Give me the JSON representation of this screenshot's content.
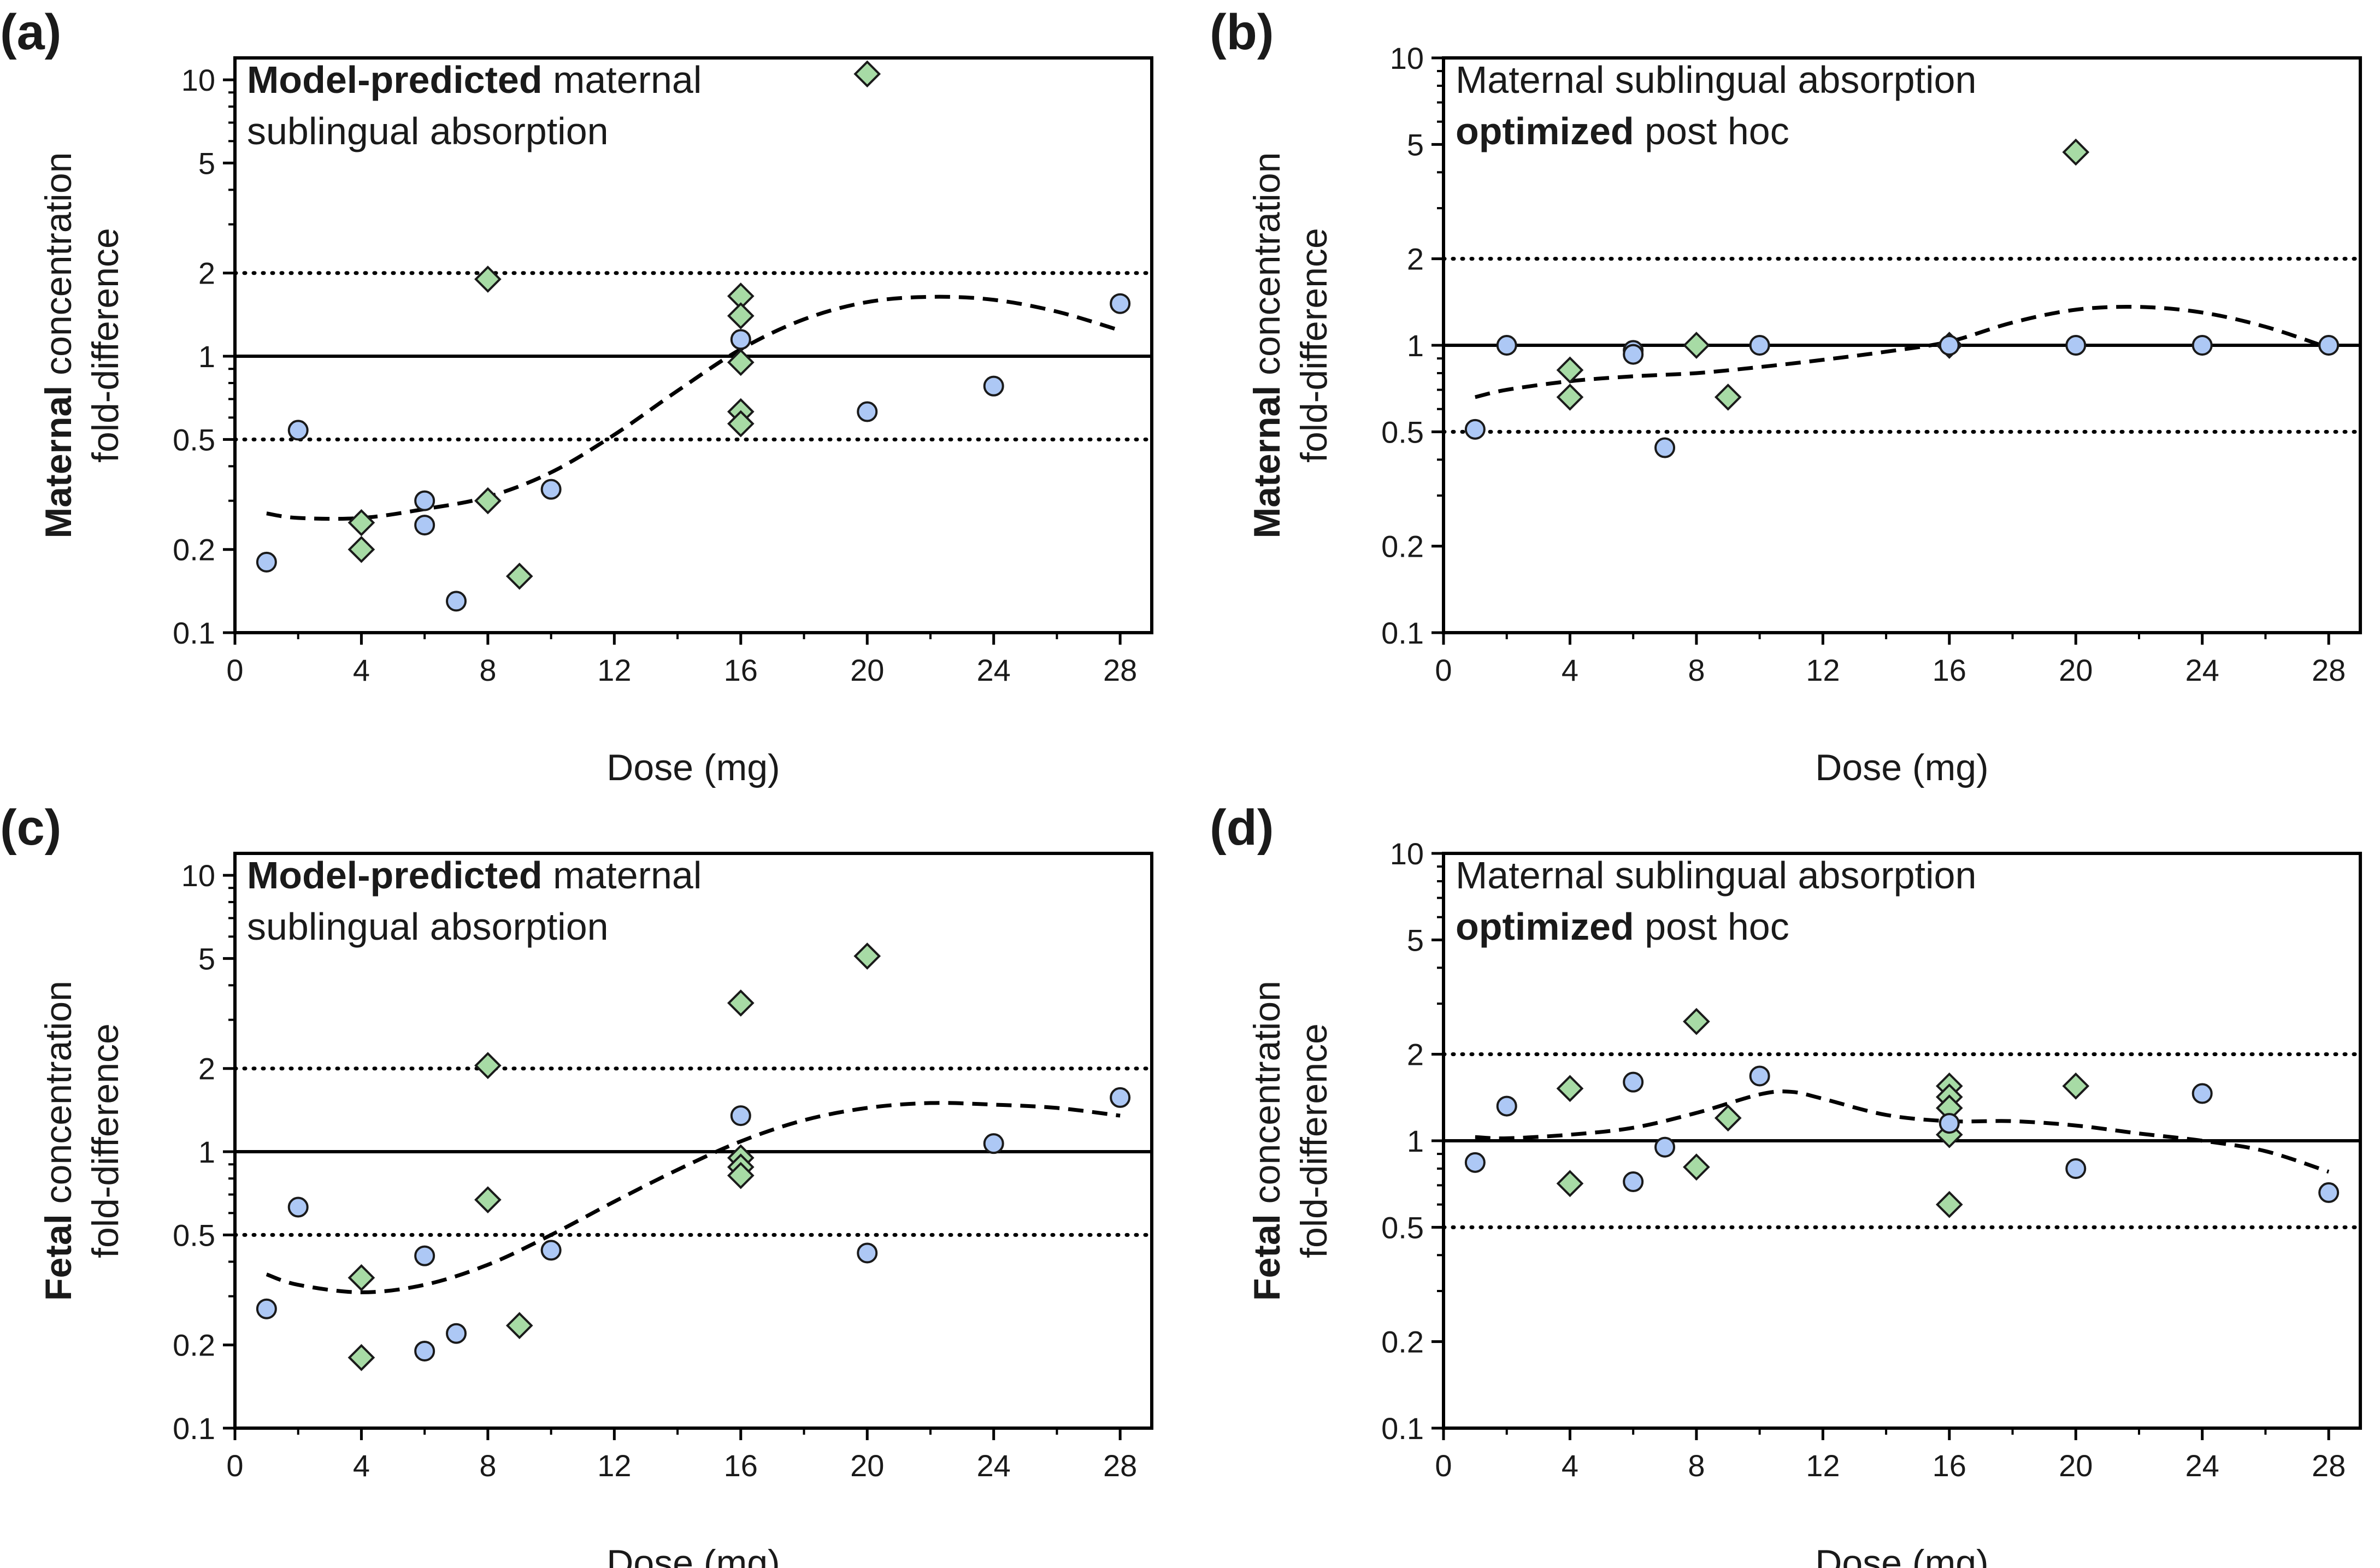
{
  "colors": {
    "circle_fill": "#adc8f5",
    "diamond_fill": "#a7dba5",
    "marker_stroke": "#1a1a1a",
    "line": "#000000"
  },
  "marker_shapes": [
    "circle-marker",
    "diamond-marker"
  ],
  "chart_data": [
    {
      "panel": "(a)",
      "type": "scatter",
      "annotation": {
        "line1_bold": "Model-predicted",
        "line1_rest": " maternal",
        "line2": "sublingual absorption",
        "line2_bold": "",
        "line2_rest": ""
      },
      "xlabel": "Dose (mg)",
      "ylabel_bold": "Maternal",
      "ylabel_rest": " concentration",
      "ylabel_line2": "fold-difference",
      "xlim": [
        0,
        29
      ],
      "ylim": [
        0.1,
        12
      ],
      "yscale": "log",
      "xticks": [
        0,
        4,
        8,
        12,
        16,
        20,
        24,
        28
      ],
      "yticks": [
        0.1,
        0.2,
        0.5,
        1,
        2,
        5,
        10
      ],
      "ytick_labels": [
        "0.1",
        "0.2",
        "0.5",
        "1",
        "2",
        "5",
        "10"
      ],
      "reference_solid": 1,
      "reference_dotted": [
        0.5,
        2
      ],
      "circles": [
        [
          1,
          0.18
        ],
        [
          2,
          0.54
        ],
        [
          6,
          0.3
        ],
        [
          6,
          0.245
        ],
        [
          7,
          0.13
        ],
        [
          10,
          0.33
        ],
        [
          16,
          1.15
        ],
        [
          20,
          0.63
        ],
        [
          24,
          0.78
        ],
        [
          28,
          1.55
        ]
      ],
      "diamonds": [
        [
          4,
          0.25
        ],
        [
          4,
          0.2
        ],
        [
          8,
          1.9
        ],
        [
          8,
          0.3
        ],
        [
          9,
          0.16
        ],
        [
          16,
          1.65
        ],
        [
          16,
          1.4
        ],
        [
          16,
          0.95
        ],
        [
          16,
          0.63
        ],
        [
          16,
          0.57
        ],
        [
          20,
          10.5
        ]
      ],
      "trend": [
        [
          1,
          0.27
        ],
        [
          2,
          0.26
        ],
        [
          4,
          0.26
        ],
        [
          6,
          0.28
        ],
        [
          8,
          0.31
        ],
        [
          10,
          0.38
        ],
        [
          12,
          0.52
        ],
        [
          14,
          0.75
        ],
        [
          16,
          1.06
        ],
        [
          18,
          1.36
        ],
        [
          20,
          1.57
        ],
        [
          22,
          1.64
        ],
        [
          24,
          1.6
        ],
        [
          26,
          1.45
        ],
        [
          28,
          1.24
        ]
      ]
    },
    {
      "panel": "(b)",
      "type": "scatter",
      "annotation": {
        "line1_bold": "",
        "line1_rest": "Maternal sublingual absorption",
        "line2": "",
        "line2_bold": "optimized",
        "line2_rest": " post hoc"
      },
      "xlabel": "Dose (mg)",
      "ylabel_bold": "Maternal",
      "ylabel_rest": " concentration",
      "ylabel_line2": "fold-difference",
      "xlim": [
        0,
        29
      ],
      "ylim": [
        0.1,
        10
      ],
      "yscale": "log",
      "xticks": [
        0,
        4,
        8,
        12,
        16,
        20,
        24,
        28
      ],
      "yticks": [
        0.1,
        0.2,
        0.5,
        1,
        2,
        5,
        10
      ],
      "ytick_labels": [
        "0.1",
        "0.2",
        "0.5",
        "1",
        "2",
        "5",
        "10"
      ],
      "reference_solid": 1,
      "reference_dotted": [
        0.5,
        2
      ],
      "circles": [
        [
          1,
          0.51
        ],
        [
          2,
          1.0
        ],
        [
          6,
          0.96
        ],
        [
          6,
          0.93
        ],
        [
          7,
          0.44
        ],
        [
          10,
          1.0
        ],
        [
          16,
          1.0
        ],
        [
          20,
          1.0
        ],
        [
          24,
          1.0
        ],
        [
          28,
          1.0
        ]
      ],
      "diamonds": [
        [
          4,
          0.82
        ],
        [
          4,
          0.66
        ],
        [
          8,
          1.0
        ],
        [
          9,
          0.66
        ],
        [
          16,
          1.0
        ],
        [
          20,
          4.7
        ]
      ],
      "trend": [
        [
          1,
          0.66
        ],
        [
          2,
          0.7
        ],
        [
          4,
          0.75
        ],
        [
          6,
          0.78
        ],
        [
          8,
          0.8
        ],
        [
          10,
          0.84
        ],
        [
          12,
          0.89
        ],
        [
          14,
          0.95
        ],
        [
          16,
          1.03
        ],
        [
          18,
          1.2
        ],
        [
          20,
          1.33
        ],
        [
          22,
          1.36
        ],
        [
          24,
          1.3
        ],
        [
          26,
          1.16
        ],
        [
          28,
          0.98
        ]
      ]
    },
    {
      "panel": "(c)",
      "type": "scatter",
      "annotation": {
        "line1_bold": "Model-predicted",
        "line1_rest": " maternal",
        "line2": "sublingual absorption",
        "line2_bold": "",
        "line2_rest": ""
      },
      "xlabel": "Dose (mg)",
      "ylabel_bold": "Fetal",
      "ylabel_rest": " concentration",
      "ylabel_line2": "fold-difference",
      "xlim": [
        0,
        29
      ],
      "ylim": [
        0.1,
        12
      ],
      "yscale": "log",
      "xticks": [
        0,
        4,
        8,
        12,
        16,
        20,
        24,
        28
      ],
      "yticks": [
        0.1,
        0.2,
        0.5,
        1,
        2,
        5,
        10
      ],
      "ytick_labels": [
        "0.1",
        "0.2",
        "0.5",
        "1",
        "2",
        "5",
        "10"
      ],
      "reference_solid": 1,
      "reference_dotted": [
        0.5,
        2
      ],
      "circles": [
        [
          1,
          0.27
        ],
        [
          2,
          0.63
        ],
        [
          6,
          0.42
        ],
        [
          6,
          0.19
        ],
        [
          7,
          0.22
        ],
        [
          10,
          0.44
        ],
        [
          16,
          1.35
        ],
        [
          20,
          0.43
        ],
        [
          24,
          1.07
        ],
        [
          28,
          1.57
        ]
      ],
      "diamonds": [
        [
          4,
          0.35
        ],
        [
          4,
          0.18
        ],
        [
          8,
          2.05
        ],
        [
          8,
          0.67
        ],
        [
          9,
          0.235
        ],
        [
          16,
          3.45
        ],
        [
          16,
          0.95
        ],
        [
          16,
          0.88
        ],
        [
          16,
          0.82
        ],
        [
          20,
          5.1
        ]
      ],
      "trend": [
        [
          1,
          0.36
        ],
        [
          2,
          0.33
        ],
        [
          4,
          0.31
        ],
        [
          6,
          0.33
        ],
        [
          8,
          0.39
        ],
        [
          10,
          0.5
        ],
        [
          12,
          0.66
        ],
        [
          14,
          0.86
        ],
        [
          16,
          1.09
        ],
        [
          18,
          1.3
        ],
        [
          20,
          1.44
        ],
        [
          22,
          1.5
        ],
        [
          24,
          1.48
        ],
        [
          26,
          1.44
        ],
        [
          28,
          1.35
        ]
      ]
    },
    {
      "panel": "(d)",
      "type": "scatter",
      "annotation": {
        "line1_bold": "",
        "line1_rest": "Maternal sublingual absorption",
        "line2": "",
        "line2_bold": "optimized",
        "line2_rest": " post hoc"
      },
      "xlabel": "Dose (mg)",
      "ylabel_bold": "Fetal",
      "ylabel_rest": " concentration",
      "ylabel_line2": "fold-difference",
      "xlim": [
        0,
        29
      ],
      "ylim": [
        0.1,
        10
      ],
      "yscale": "log",
      "xticks": [
        0,
        4,
        8,
        12,
        16,
        20,
        24,
        28
      ],
      "yticks": [
        0.1,
        0.2,
        0.5,
        1,
        2,
        5,
        10
      ],
      "ytick_labels": [
        "0.1",
        "0.2",
        "0.5",
        "1",
        "2",
        "5",
        "10"
      ],
      "reference_solid": 1,
      "reference_dotted": [
        0.5,
        2
      ],
      "circles": [
        [
          1,
          0.84
        ],
        [
          2,
          1.32
        ],
        [
          6,
          1.6
        ],
        [
          6,
          0.72
        ],
        [
          7,
          0.95
        ],
        [
          10,
          1.68
        ],
        [
          16,
          1.15
        ],
        [
          20,
          0.8
        ],
        [
          24,
          1.46
        ],
        [
          28,
          0.66
        ]
      ],
      "diamonds": [
        [
          4,
          1.52
        ],
        [
          4,
          0.71
        ],
        [
          8,
          2.6
        ],
        [
          8,
          0.81
        ],
        [
          9,
          1.2
        ],
        [
          16,
          1.55
        ],
        [
          16,
          1.42
        ],
        [
          16,
          1.3
        ],
        [
          16,
          1.05
        ],
        [
          16,
          0.6
        ],
        [
          20,
          1.55
        ]
      ],
      "trend": [
        [
          1,
          1.03
        ],
        [
          2,
          1.02
        ],
        [
          4,
          1.05
        ],
        [
          6,
          1.11
        ],
        [
          8,
          1.25
        ],
        [
          10,
          1.45
        ],
        [
          11,
          1.48
        ],
        [
          12,
          1.4
        ],
        [
          14,
          1.23
        ],
        [
          16,
          1.17
        ],
        [
          18,
          1.17
        ],
        [
          20,
          1.13
        ],
        [
          22,
          1.06
        ],
        [
          24,
          1.0
        ],
        [
          26,
          0.92
        ],
        [
          28,
          0.78
        ]
      ]
    }
  ]
}
